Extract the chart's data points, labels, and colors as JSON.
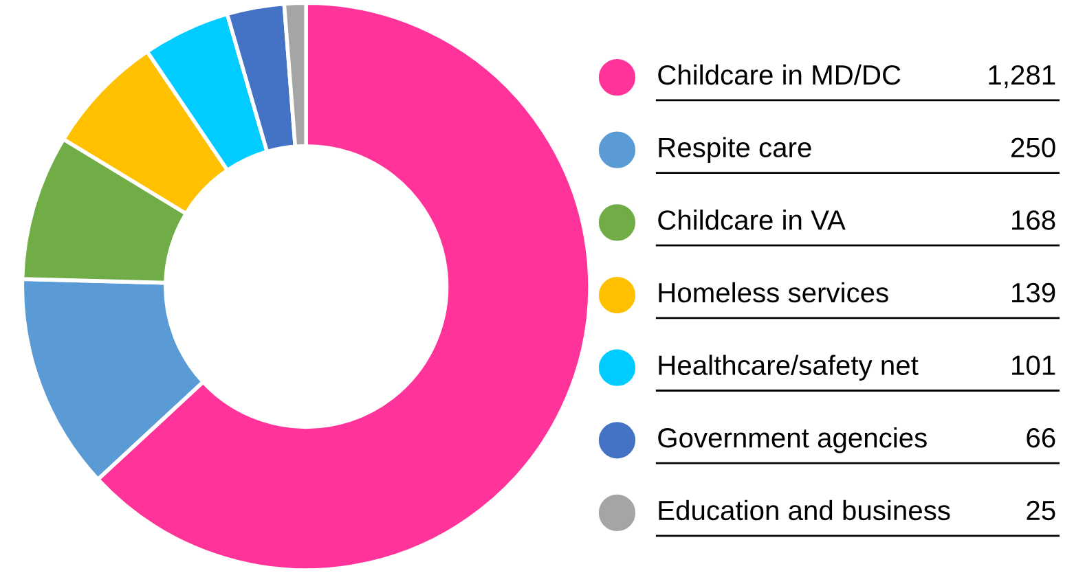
{
  "chart_data": {
    "type": "donut",
    "categories": [
      "Childcare in MD/DC",
      "Respite care",
      "Childcare in VA",
      "Homeless services",
      "Healthcare/safety net",
      "Government agencies",
      "Education and business"
    ],
    "values": [
      1281,
      250,
      168,
      139,
      101,
      66,
      25
    ],
    "colors": [
      "#ff3399",
      "#5b9bd5",
      "#70ad47",
      "#ffc000",
      "#00ccff",
      "#4472c4",
      "#a5a5a5"
    ],
    "value_labels": [
      "1,281",
      "250",
      "168",
      "139",
      "101",
      "66",
      "25"
    ],
    "legend": "right"
  }
}
